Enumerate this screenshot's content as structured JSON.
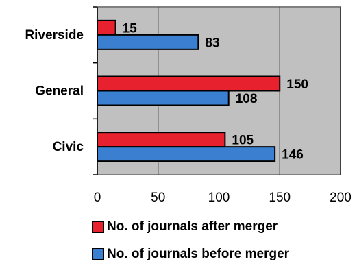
{
  "chart_data": {
    "type": "bar",
    "orientation": "horizontal",
    "categories": [
      "Riverside",
      "General",
      "Civic"
    ],
    "series": [
      {
        "name": "No. of journals after merger",
        "values": [
          15,
          150,
          105
        ],
        "color": "#e8212e"
      },
      {
        "name": "No. of journals before merger",
        "values": [
          83,
          108,
          146
        ],
        "color": "#3b7fd0"
      }
    ],
    "xlim": [
      0,
      200
    ],
    "xticks": [
      0,
      50,
      100,
      150,
      200
    ],
    "grid": true,
    "plot_background": "#c0c0c0",
    "legend_placement": "bottom"
  }
}
